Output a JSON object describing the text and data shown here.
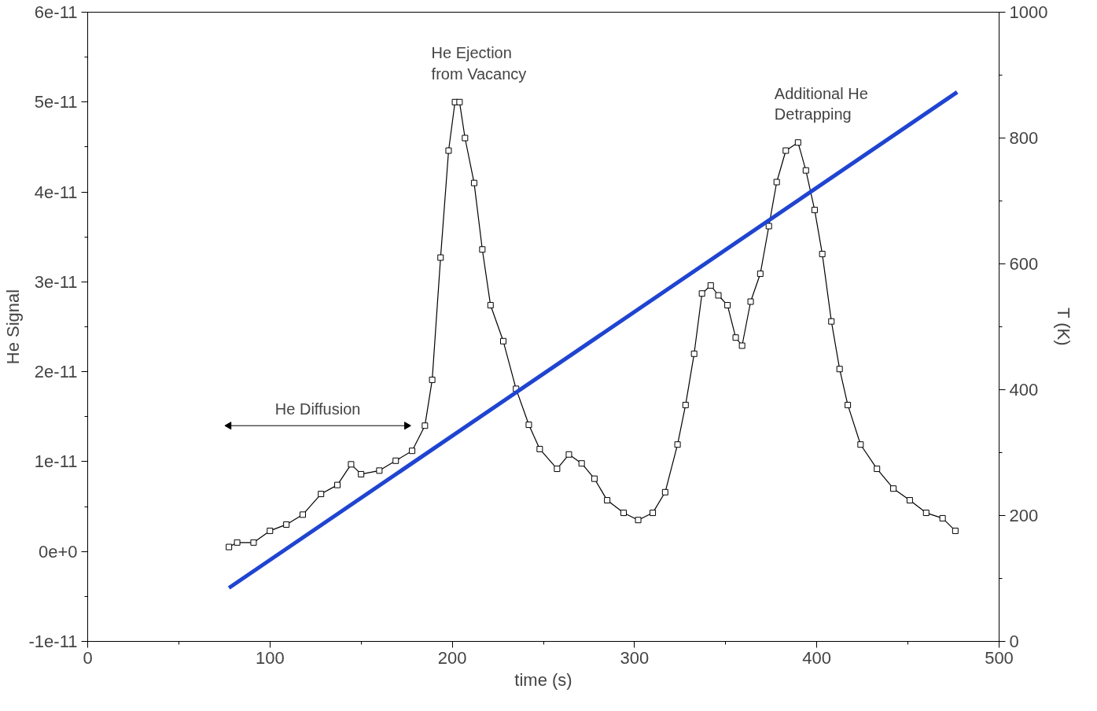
{
  "chart_data": {
    "type": "line",
    "xlabel": "time (s)",
    "ylabel": "He Signal",
    "y2label": "T (K)",
    "xlim": [
      0,
      500
    ],
    "xticks": [
      0,
      100,
      200,
      300,
      400,
      500
    ],
    "ylim": [
      -1e-11,
      6e-11
    ],
    "yticks": [
      {
        "value": -1e-11,
        "label": "-1e-11"
      },
      {
        "value": 0,
        "label": "0e+0"
      },
      {
        "value": 1e-11,
        "label": "1e-11"
      },
      {
        "value": 2e-11,
        "label": "2e-11"
      },
      {
        "value": 3e-11,
        "label": "3e-11"
      },
      {
        "value": 4e-11,
        "label": "4e-11"
      },
      {
        "value": 5e-11,
        "label": "5e-11"
      },
      {
        "value": 6e-11,
        "label": "6e-11"
      }
    ],
    "y2lim": [
      0,
      1000
    ],
    "y2ticks": [
      0,
      200,
      400,
      600,
      800,
      1000
    ],
    "grid": false,
    "series": [
      {
        "color": "#000000",
        "marker": "square",
        "x": [
          77.5,
          82,
          91,
          100,
          109,
          118,
          128,
          137,
          144.5,
          150,
          160,
          169,
          178,
          185,
          189,
          193.6,
          198,
          201.5,
          204,
          207,
          212,
          216.5,
          221,
          228,
          235,
          242,
          248,
          257.5,
          264,
          271,
          278,
          285,
          294,
          302,
          310,
          316.8,
          323.6,
          328,
          332.7,
          337,
          341.8,
          346,
          351,
          355.5,
          359,
          363.7,
          369,
          373.7,
          378,
          383,
          389.7,
          394,
          398.8,
          403,
          408,
          412.5,
          417,
          424,
          433,
          442,
          451,
          460,
          469,
          476
        ],
        "values": [
          5e-13,
          1e-12,
          1e-12,
          2.3e-12,
          3e-12,
          4.1e-12,
          6.4e-12,
          7.4e-12,
          9.7e-12,
          8.6e-12,
          9e-12,
          1.01e-11,
          1.12e-11,
          1.4e-11,
          1.91e-11,
          3.27e-11,
          4.46e-11,
          5e-11,
          5e-11,
          4.6e-11,
          4.1e-11,
          3.36e-11,
          2.74e-11,
          2.34e-11,
          1.81e-11,
          1.41e-11,
          1.14e-11,
          9.2e-12,
          1.08e-11,
          9.8e-12,
          8.1e-12,
          5.7e-12,
          4.3e-12,
          3.5e-12,
          4.3e-12,
          6.6e-12,
          1.19e-11,
          1.63e-11,
          2.2e-11,
          2.87e-11,
          2.96e-11,
          2.85e-11,
          2.74e-11,
          2.38e-11,
          2.29e-11,
          2.78e-11,
          3.09e-11,
          3.62e-11,
          4.11e-11,
          4.46e-11,
          4.55e-11,
          4.24e-11,
          3.8e-11,
          3.31e-11,
          2.56e-11,
          2.03e-11,
          1.63e-11,
          1.19e-11,
          9.2e-12,
          7e-12,
          5.7e-12,
          4.3e-12,
          3.7e-12,
          2.3e-12
        ]
      },
      {
        "color": "#1f44d0",
        "axis": "y2",
        "marker": "none",
        "x": [
          77.5,
          477
        ],
        "values": [
          85,
          873
        ]
      },
      {
        "name": "He Diffusion",
        "color": "#000000",
        "marker": "triangle",
        "x": [
          77.5,
          175
        ],
        "values": [
          1.4e-11,
          1.4e-11
        ]
      }
    ],
    "annotations": [
      {
        "text": "He Ejection\nfrom Vacancy",
        "x": 201.5,
        "y": 5e-11
      },
      {
        "text": "Additional He\nDetrapping",
        "x": 389.7,
        "y": 4.55e-11
      }
    ]
  }
}
